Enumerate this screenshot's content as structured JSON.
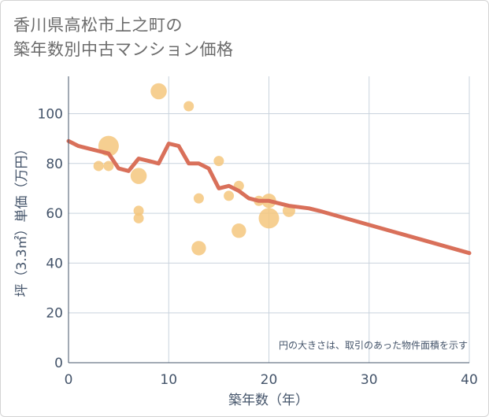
{
  "title": {
    "line1": "香川県高松市上之町の",
    "line2": "築年数別中古マンション価格"
  },
  "chart_data": {
    "type": "scatter",
    "title": "香川県高松市上之町の築年数別中古マンション価格",
    "xlabel": "築年数（年）",
    "ylabel": "坪（3.3㎡）単価（万円）",
    "xlim": [
      0,
      40
    ],
    "ylim": [
      0,
      115
    ],
    "x_ticks": [
      "0",
      "10",
      "20",
      "30",
      "40"
    ],
    "y_ticks": [
      "0",
      "20",
      "40",
      "60",
      "80",
      "100"
    ],
    "grid": true,
    "note": "円の大きさは、取引のあった物件面積を示す",
    "colors": {
      "bubble": "#f5c77e",
      "trend": "#d9705a",
      "grid": "#c9d3dd"
    },
    "bubbles": [
      {
        "x": 3,
        "y": 79,
        "size": 1
      },
      {
        "x": 4,
        "y": 87,
        "size": 4
      },
      {
        "x": 4,
        "y": 79,
        "size": 1
      },
      {
        "x": 7,
        "y": 75,
        "size": 2.5
      },
      {
        "x": 7,
        "y": 61,
        "size": 1
      },
      {
        "x": 7,
        "y": 58,
        "size": 1
      },
      {
        "x": 9,
        "y": 109,
        "size": 2.5
      },
      {
        "x": 12,
        "y": 103,
        "size": 1
      },
      {
        "x": 13,
        "y": 66,
        "size": 1
      },
      {
        "x": 13,
        "y": 46,
        "size": 2
      },
      {
        "x": 15,
        "y": 81,
        "size": 1
      },
      {
        "x": 16,
        "y": 67,
        "size": 1
      },
      {
        "x": 17,
        "y": 71,
        "size": 1
      },
      {
        "x": 17,
        "y": 53,
        "size": 2
      },
      {
        "x": 19,
        "y": 65,
        "size": 1
      },
      {
        "x": 20,
        "y": 65,
        "size": 2
      },
      {
        "x": 20,
        "y": 58,
        "size": 4
      },
      {
        "x": 22,
        "y": 61,
        "size": 1.5
      }
    ],
    "trend": {
      "x": [
        0,
        1,
        2,
        3,
        4,
        5,
        6,
        7,
        8,
        9,
        10,
        11,
        12,
        13,
        14,
        15,
        16,
        17,
        18,
        19,
        20,
        21,
        22,
        23,
        24,
        25,
        40
      ],
      "y": [
        89,
        87,
        86,
        85,
        84,
        78,
        77,
        82,
        81,
        80,
        88,
        87,
        80,
        80,
        78,
        70,
        71,
        69,
        66,
        65,
        65,
        64,
        63,
        62.5,
        62,
        61,
        44
      ]
    }
  }
}
